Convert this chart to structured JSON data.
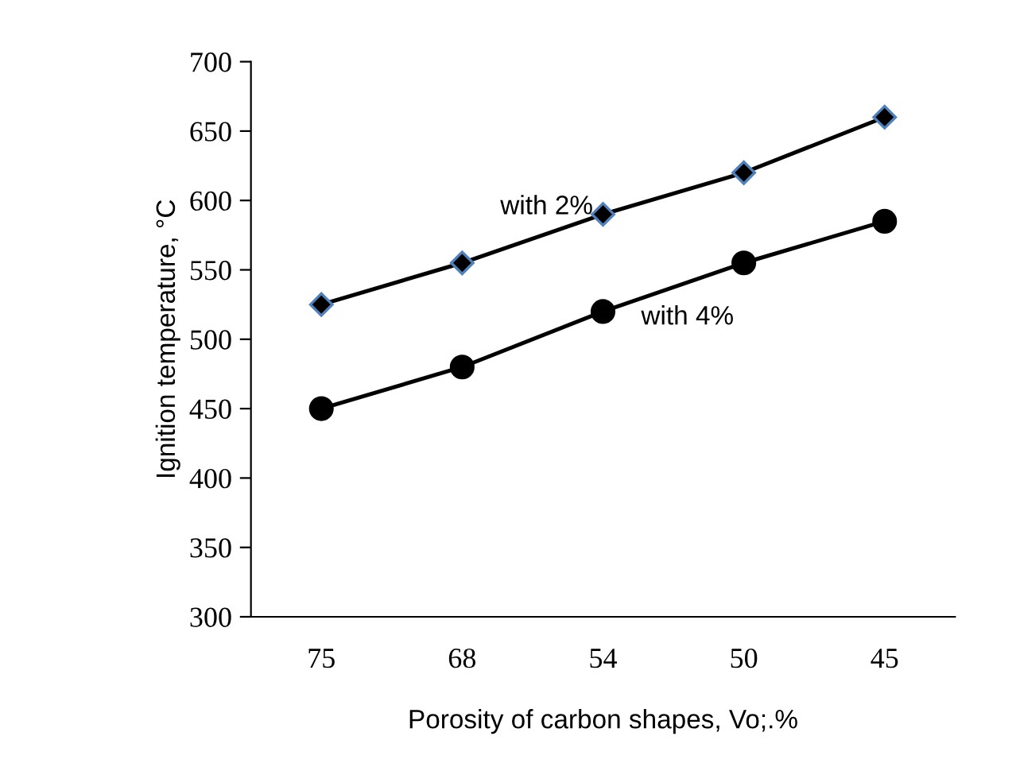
{
  "chart_data": {
    "type": "line",
    "xlabel": "Porosity of carbon shapes, Vo;.%",
    "ylabel": "Ignition temperature, °C",
    "categories": [
      "75",
      "68",
      "54",
      "50",
      "45"
    ],
    "series": [
      {
        "name": "with 2%",
        "color": "#000000",
        "marker": "diamond",
        "values": [
          525,
          555,
          590,
          620,
          660
        ]
      },
      {
        "name": "with 4%",
        "color": "#000000",
        "marker": "circle",
        "values": [
          450,
          480,
          520,
          555,
          585
        ]
      }
    ],
    "ylim": [
      300,
      700
    ],
    "yticks": [
      300,
      350,
      400,
      450,
      500,
      550,
      600,
      650,
      700
    ],
    "grid": false,
    "legend": false,
    "line_style": "solid"
  }
}
